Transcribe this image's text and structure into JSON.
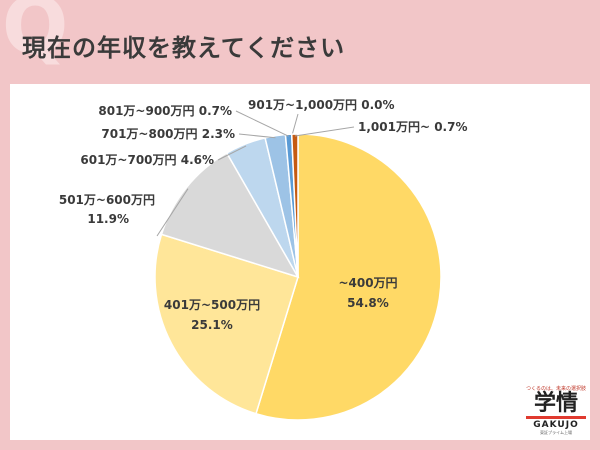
{
  "header": {
    "q_mark": "Q",
    "title": "現在の年収を教えてください"
  },
  "logo": {
    "tagline": "つくるのは、未来の選択肢",
    "main": "学情",
    "sub": "GAKUJO",
    "small": "東証プライム上場"
  },
  "chart_data": {
    "type": "pie",
    "title": "現在の年収を教えてください",
    "slices": [
      {
        "label": "~400万円",
        "value": 54.8,
        "value_text": "54.8%",
        "color": "#ffd966"
      },
      {
        "label": "401万~500万円",
        "value": 25.1,
        "value_text": "25.1%",
        "color": "#ffe699"
      },
      {
        "label": "501万~600万円",
        "value": 11.9,
        "value_text": "11.9%",
        "color": "#d9d9d9"
      },
      {
        "label": "601万~700万円",
        "value": 4.6,
        "value_text": "4.6%",
        "color": "#bdd7ee"
      },
      {
        "label": "701万~800万円",
        "value": 2.3,
        "value_text": "2.3%",
        "color": "#9dc3e6"
      },
      {
        "label": "801万~900万円",
        "value": 0.7,
        "value_text": "0.7%",
        "color": "#5b9bd5"
      },
      {
        "label": "901万~1,000万円",
        "value": 0.0,
        "value_text": "0.0%",
        "color": "#ed7d31"
      },
      {
        "label": "1,001万円~",
        "value": 0.7,
        "value_text": "0.7%",
        "color": "#c55a11"
      }
    ]
  }
}
